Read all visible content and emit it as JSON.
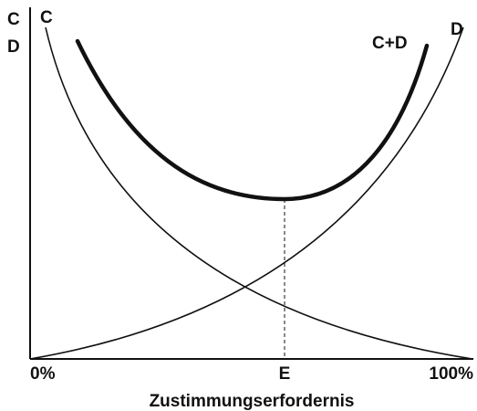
{
  "y_axis_label": [
    "C",
    "D"
  ],
  "curve_labels": {
    "c": "C",
    "d": "D",
    "sum": "C+D"
  },
  "x_labels": [
    "0%",
    "E",
    "100%"
  ],
  "x_title": "Zustimmungserfordernis"
}
